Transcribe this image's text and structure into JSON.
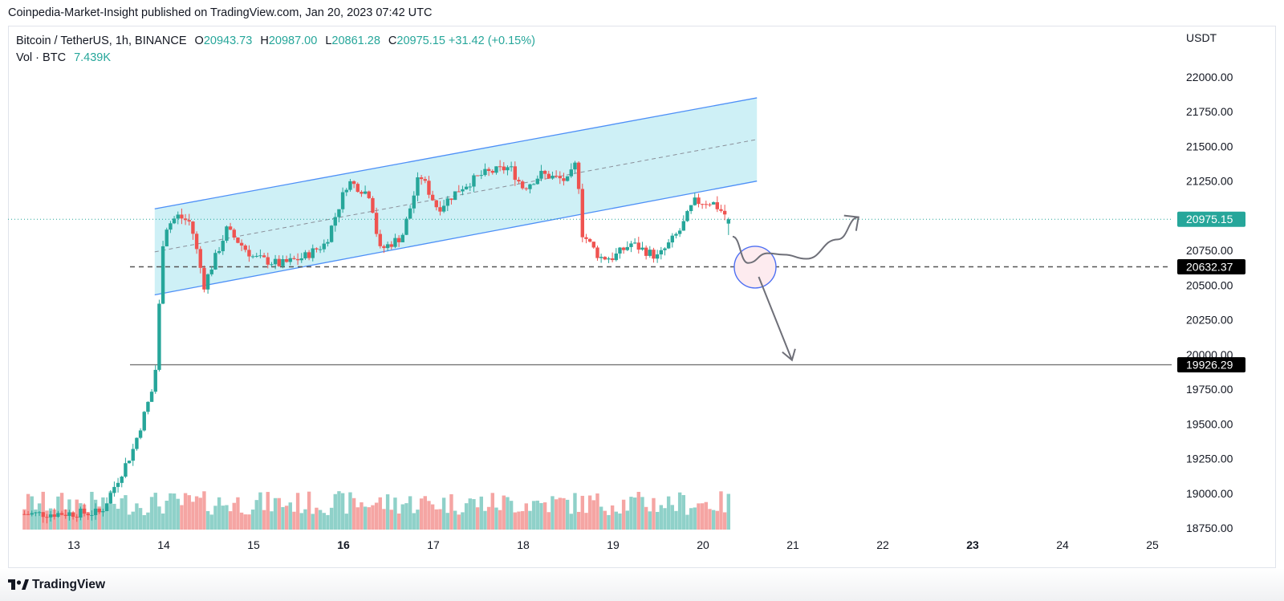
{
  "header": {
    "publish_line": "Coinpedia-Market-Insight published on TradingView.com, Jan 20, 2023 07:42 UTC"
  },
  "legend": {
    "pair": "Bitcoin / TetherUS, 1h, BINANCE",
    "open_label": "O",
    "open": "20943.73",
    "high_label": "H",
    "high": "20987.00",
    "low_label": "L",
    "low": "20861.28",
    "close_label": "C",
    "close": "20975.15",
    "change": "+31.42 (+0.15%)",
    "vol_label": "Vol · BTC",
    "vol_value": "7.439K"
  },
  "footer": {
    "brand": "TradingView"
  },
  "colors": {
    "up": "#26a69a",
    "down": "#ef5350",
    "vol_up": "#8fd1c9",
    "vol_down": "#f5a5a3",
    "channel_fill": "#c5edf5",
    "channel_line": "#4d8ff7",
    "price_tag": "#26a69a",
    "level_tag": "#000000",
    "annotation": "#6e6f78",
    "circle_stroke": "#4d6ff2",
    "circle_fill": "#fdebef"
  },
  "chart_data": {
    "type": "candlestick",
    "symbol": "Bitcoin / TetherUS",
    "interval": "1h",
    "exchange": "BINANCE",
    "y_unit": "USDT",
    "ylim": [
      18750,
      22200
    ],
    "y_ticks": [
      "22000.00",
      "21750.00",
      "21500.00",
      "21250.00",
      "20750.00",
      "20500.00",
      "20250.00",
      "20000.00",
      "19750.00",
      "19500.00",
      "19250.00",
      "19000.00",
      "18750.00"
    ],
    "x_ticks": [
      {
        "label": "13",
        "day": 13,
        "bold": false
      },
      {
        "label": "14",
        "day": 14,
        "bold": false
      },
      {
        "label": "15",
        "day": 15,
        "bold": false
      },
      {
        "label": "16",
        "day": 16,
        "bold": true
      },
      {
        "label": "17",
        "day": 17,
        "bold": false
      },
      {
        "label": "18",
        "day": 18,
        "bold": false
      },
      {
        "label": "19",
        "day": 19,
        "bold": false
      },
      {
        "label": "20",
        "day": 20,
        "bold": false
      },
      {
        "label": "21",
        "day": 21,
        "bold": false
      },
      {
        "label": "22",
        "day": 22,
        "bold": false
      },
      {
        "label": "23",
        "day": 23,
        "bold": true
      },
      {
        "label": "24",
        "day": 24,
        "bold": false
      },
      {
        "label": "25",
        "day": 25,
        "bold": false
      }
    ],
    "x_start_day": 12.3,
    "candles_start_day": 12.45,
    "candle_step_days": 0.04167,
    "last_price": {
      "label": "20975.15",
      "value": 20975.15
    },
    "levels": [
      {
        "label": "20632.37",
        "value": 20632.37,
        "style": "dashed"
      },
      {
        "label": "19926.29",
        "value": 19926.29,
        "style": "solid"
      }
    ],
    "channel": {
      "upper": [
        {
          "day": 13.9,
          "value": 21050
        },
        {
          "day": 20.6,
          "value": 21850
        }
      ],
      "lower": [
        {
          "day": 13.9,
          "value": 20430
        },
        {
          "day": 20.6,
          "value": 21250
        }
      ]
    },
    "projection_bullish": [
      {
        "day": 20.33,
        "value": 20850
      },
      {
        "day": 20.5,
        "value": 20660
      },
      {
        "day": 20.72,
        "value": 20730
      },
      {
        "day": 20.9,
        "value": 20720
      },
      {
        "day": 21.15,
        "value": 20690
      },
      {
        "day": 21.5,
        "value": 20830
      },
      {
        "day": 21.73,
        "value": 20990
      }
    ],
    "projection_bearish": [
      {
        "day": 20.62,
        "value": 20560
      },
      {
        "day": 20.99,
        "value": 19960
      }
    ],
    "support_circle": {
      "day": 20.58,
      "value": 20630
    },
    "anchors": [
      {
        "day": 12.45,
        "value": 18850
      },
      {
        "day": 13.3,
        "value": 18860
      },
      {
        "day": 13.65,
        "value": 19300
      },
      {
        "day": 13.9,
        "value": 19800
      },
      {
        "day": 14.0,
        "value": 20900
      },
      {
        "day": 14.15,
        "value": 21000
      },
      {
        "day": 14.3,
        "value": 20950
      },
      {
        "day": 14.45,
        "value": 20500
      },
      {
        "day": 14.7,
        "value": 20900
      },
      {
        "day": 15.0,
        "value": 20700
      },
      {
        "day": 15.3,
        "value": 20650
      },
      {
        "day": 15.55,
        "value": 20700
      },
      {
        "day": 15.8,
        "value": 20800
      },
      {
        "day": 16.05,
        "value": 21250
      },
      {
        "day": 16.3,
        "value": 21150
      },
      {
        "day": 16.4,
        "value": 20750
      },
      {
        "day": 16.65,
        "value": 20850
      },
      {
        "day": 16.85,
        "value": 21300
      },
      {
        "day": 17.05,
        "value": 21050
      },
      {
        "day": 17.3,
        "value": 21200
      },
      {
        "day": 17.55,
        "value": 21300
      },
      {
        "day": 17.85,
        "value": 21350
      },
      {
        "day": 18.0,
        "value": 21200
      },
      {
        "day": 18.2,
        "value": 21300
      },
      {
        "day": 18.5,
        "value": 21250
      },
      {
        "day": 18.6,
        "value": 21400
      },
      {
        "day": 18.65,
        "value": 20880
      },
      {
        "day": 18.85,
        "value": 20700
      },
      {
        "day": 19.0,
        "value": 20700
      },
      {
        "day": 19.2,
        "value": 20800
      },
      {
        "day": 19.5,
        "value": 20700
      },
      {
        "day": 19.75,
        "value": 20900
      },
      {
        "day": 19.9,
        "value": 21100
      },
      {
        "day": 20.1,
        "value": 21100
      },
      {
        "day": 20.3,
        "value": 20975
      }
    ]
  }
}
